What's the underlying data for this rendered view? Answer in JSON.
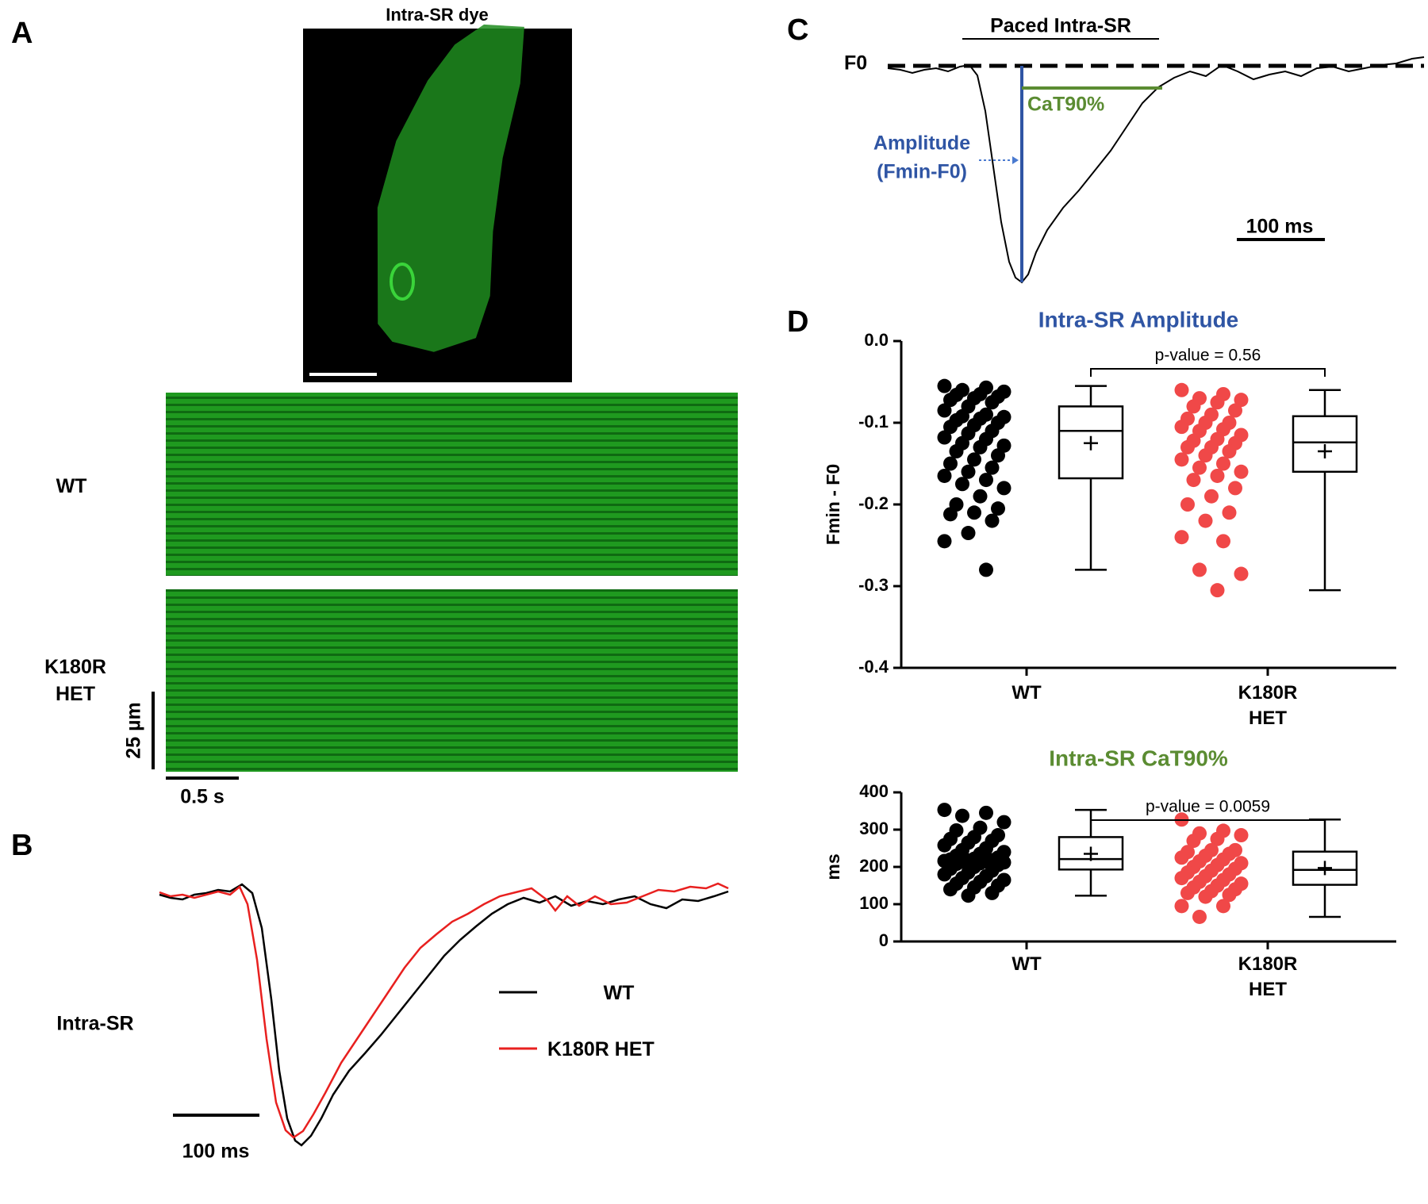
{
  "panel_labels": [
    "A",
    "B",
    "C",
    "D"
  ],
  "panel_a": {
    "title": "Intra-SR dye",
    "row_labels": [
      "WT",
      "K180R HET"
    ],
    "scale_y": "25 µm",
    "scale_x": "0.5 s"
  },
  "panel_b": {
    "label": "Intra-SR",
    "legend": [
      {
        "name": "WT",
        "color": "#000000"
      },
      {
        "name": "K180R HET",
        "color": "#e8201f"
      }
    ],
    "scale": "100 ms"
  },
  "panel_c": {
    "title": "Paced Intra-SR",
    "baseline": "F0",
    "decay": "CaT90%",
    "amplitude": "Amplitude",
    "amplitude_formula": "(Fmin-F0)",
    "scale": "100 ms"
  },
  "chart_data": [
    {
      "type": "box",
      "title": "Intra-SR Amplitude",
      "title_color": "#2f55a4",
      "ylabel": "Fmin - F0",
      "categories": [
        "WT",
        "K180R HET"
      ],
      "ylim": [
        -0.4,
        0
      ],
      "yticks": [
        {
          "value": -0.4,
          "label": "-0.4"
        },
        -0.3,
        -0.2,
        -0.1,
        {
          "value": 0,
          "label": "0.0"
        }
      ],
      "annotation": "p-value = 0.56",
      "groups": [
        {
          "color": "#000000",
          "values": [
            -0.055,
            -0.057,
            -0.06,
            -0.062,
            -0.065,
            -0.066,
            -0.068,
            -0.07,
            -0.072,
            -0.075,
            -0.08,
            -0.085,
            -0.09,
            -0.092,
            -0.093,
            -0.095,
            -0.097,
            -0.1,
            -0.103,
            -0.105,
            -0.11,
            -0.113,
            -0.118,
            -0.12,
            -0.125,
            -0.128,
            -0.13,
            -0.135,
            -0.14,
            -0.145,
            -0.15,
            -0.155,
            -0.16,
            -0.165,
            -0.17,
            -0.175,
            -0.18,
            -0.19,
            -0.2,
            -0.205,
            -0.21,
            -0.212,
            -0.22,
            -0.235,
            -0.245,
            -0.28
          ],
          "box": {
            "min": -0.28,
            "q1": -0.168,
            "median": -0.11,
            "q3": -0.08,
            "max": -0.055,
            "mean": -0.125
          }
        },
        {
          "color": "#f04848",
          "values": [
            -0.06,
            -0.065,
            -0.07,
            -0.072,
            -0.075,
            -0.08,
            -0.085,
            -0.09,
            -0.095,
            -0.1,
            -0.1,
            -0.105,
            -0.108,
            -0.11,
            -0.115,
            -0.12,
            -0.122,
            -0.125,
            -0.13,
            -0.13,
            -0.135,
            -0.14,
            -0.145,
            -0.15,
            -0.155,
            -0.16,
            -0.165,
            -0.17,
            -0.18,
            -0.19,
            -0.2,
            -0.21,
            -0.22,
            -0.24,
            -0.245,
            -0.28,
            -0.285,
            -0.305
          ],
          "box": {
            "min": -0.305,
            "q1": -0.16,
            "median": -0.124,
            "q3": -0.092,
            "max": -0.06,
            "mean": -0.135
          }
        }
      ]
    },
    {
      "type": "box",
      "title": "Intra-SR CaT90%",
      "title_color": "#5b8c32",
      "ylabel": "ms",
      "categories": [
        "WT",
        "K180R HET"
      ],
      "ylim": [
        0,
        400
      ],
      "yticks": [
        0,
        100,
        200,
        300,
        400
      ],
      "annotation": "p-value = 0.0059",
      "groups": [
        {
          "color": "#000000",
          "values": [
            353,
            345,
            337,
            320,
            305,
            298,
            285,
            280,
            275,
            270,
            265,
            258,
            250,
            245,
            240,
            235,
            230,
            225,
            222,
            220,
            218,
            217,
            216,
            215,
            214,
            212,
            210,
            208,
            205,
            200,
            195,
            190,
            185,
            180,
            175,
            170,
            165,
            160,
            155,
            150,
            145,
            140,
            130,
            123
          ],
          "box": {
            "min": 123,
            "q1": 193,
            "median": 221,
            "q3": 280,
            "max": 353,
            "mean": 235
          }
        },
        {
          "color": "#f04848",
          "values": [
            327,
            297,
            290,
            285,
            275,
            270,
            245,
            245,
            240,
            235,
            230,
            225,
            220,
            215,
            210,
            205,
            200,
            195,
            190,
            185,
            180,
            175,
            170,
            165,
            160,
            155,
            150,
            145,
            140,
            135,
            130,
            125,
            120,
            95,
            95,
            66
          ],
          "box": {
            "min": 66,
            "q1": 152,
            "median": 192,
            "q3": 241,
            "max": 327,
            "mean": 197
          }
        }
      ]
    }
  ]
}
